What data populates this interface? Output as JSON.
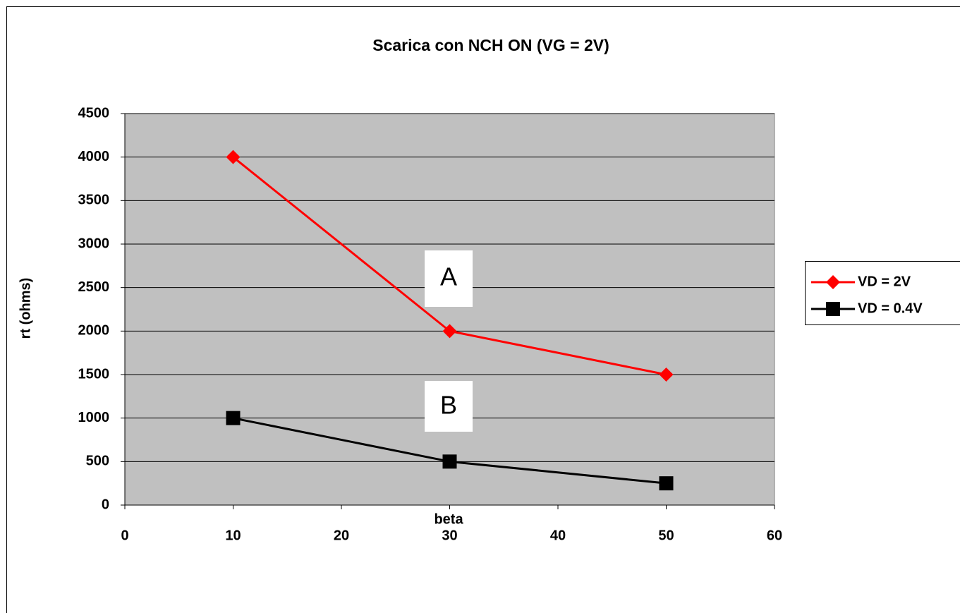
{
  "chart_data": {
    "type": "line",
    "title": "Scarica con NCH ON (VG = 2V)",
    "x_label": "beta",
    "y_label": "rt (ohms)",
    "x": [
      10,
      30,
      50
    ],
    "series": [
      {
        "name": "VD = 2V",
        "color": "#ff0000",
        "marker": "diamond",
        "values": [
          4000,
          2000,
          1500
        ]
      },
      {
        "name": "VD = 0.4V",
        "color": "#000000",
        "marker": "square",
        "values": [
          1000,
          500,
          250
        ]
      }
    ],
    "xlim": [
      0,
      60
    ],
    "xticks": [
      0,
      10,
      20,
      30,
      40,
      50,
      60
    ],
    "ylim": [
      0,
      4500
    ],
    "yticks": [
      0,
      500,
      1000,
      1500,
      2000,
      2500,
      3000,
      3500,
      4000,
      4500
    ],
    "grid": true,
    "legend": "right",
    "annotations": [
      "A",
      "B"
    ]
  }
}
